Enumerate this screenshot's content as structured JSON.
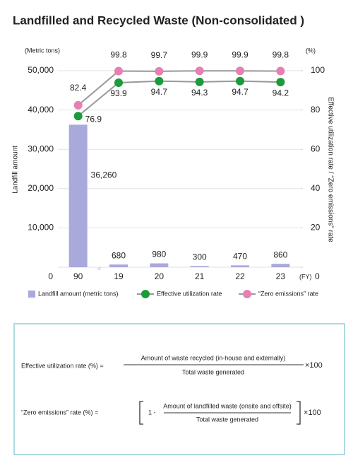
{
  "chart_data": {
    "type": "combo",
    "title": "Landfilled and Recycled Waste (Non-consolidated )",
    "y_unit": "(Metric tons)",
    "y2_unit": "(%)",
    "x_unit": "(FY)",
    "ylabel": "Landfill amount",
    "y2label": "Effective utilization rate / “Zero emissions” rate",
    "categories": [
      "90",
      "19",
      "20",
      "21",
      "22",
      "23"
    ],
    "ylim": [
      0,
      50000
    ],
    "yticks": [
      0,
      {
        "value": 10000,
        "label": "10,000"
      },
      {
        "value": 20000,
        "label": "20,000"
      },
      {
        "value": 30000,
        "label": "30,000"
      },
      {
        "value": 40000,
        "label": "40,000"
      },
      {
        "value": 50000,
        "label": "50,000"
      }
    ],
    "y2lim": [
      0,
      100
    ],
    "y2ticks": [
      0,
      20,
      40,
      60,
      80,
      100
    ],
    "grid": true,
    "series": [
      {
        "name": "Landfill amount (metric tons)",
        "type": "bar",
        "color": "#a9a9dc",
        "values": [
          36260,
          680,
          980,
          300,
          470,
          860
        ],
        "value_labels": [
          "36,260",
          "680",
          "980",
          "300",
          "470",
          "860"
        ]
      },
      {
        "name": "Effective utilization rate",
        "type": "line",
        "axis": "y2",
        "color": "#1a9c3a",
        "values": [
          76.9,
          93.9,
          94.7,
          94.3,
          94.7,
          94.2
        ]
      },
      {
        "name": "“Zero emissions” rate",
        "type": "line",
        "axis": "y2",
        "color": "#e67fb2",
        "values": [
          82.4,
          99.8,
          99.7,
          99.9,
          99.9,
          99.8
        ]
      }
    ]
  },
  "formulas": [
    {
      "lhs": "Effective utilization rate (%) =",
      "numerator": "Amount of waste recycled (in-house and externally)",
      "denominator": "Total waste generated",
      "multiplier": "×100"
    },
    {
      "lhs": "“Zero emissions” rate (%) =",
      "prefix": "1 -",
      "numerator": "Amount of landfilled waste (onsite and offsite)",
      "denominator": "Total waste generated",
      "multiplier": "×100"
    }
  ]
}
